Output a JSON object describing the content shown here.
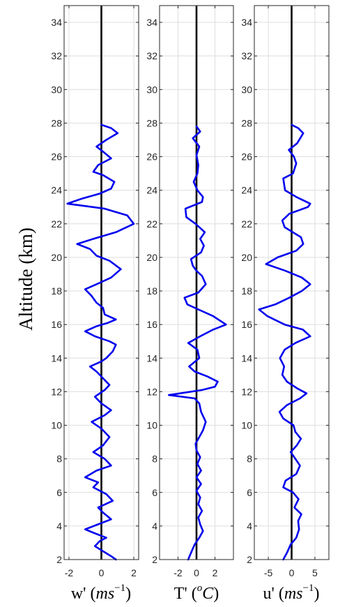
{
  "figure": {
    "ylabel": "Altitude (km)"
  },
  "chart_data": [
    {
      "type": "line",
      "xlabel": "w' (ms^-1)",
      "xlim": [
        -2.3,
        2.3
      ],
      "ylim": [
        2,
        35
      ],
      "xticks": [
        -2,
        0,
        2
      ],
      "xtick_labels": [
        "-2",
        "0",
        "2"
      ],
      "yticks": [
        2,
        4,
        6,
        8,
        10,
        12,
        14,
        16,
        18,
        20,
        22,
        24,
        26,
        28,
        30,
        32,
        34
      ],
      "ytick_labels": [
        "2",
        "4",
        "6",
        "8",
        "10",
        "12",
        "14",
        "16",
        "18",
        "20",
        "22",
        "24",
        "26",
        "28",
        "30",
        "32",
        "34"
      ],
      "grid": true,
      "series": [
        {
          "color": "#0000ee",
          "points": [
            [
              0.9,
              2.0
            ],
            [
              0.6,
              2.2
            ],
            [
              0.1,
              2.5
            ],
            [
              -0.4,
              2.8
            ],
            [
              -0.1,
              3.1
            ],
            [
              0.3,
              3.3
            ],
            [
              -0.5,
              3.6
            ],
            [
              -1.0,
              3.8
            ],
            [
              -0.2,
              4.1
            ],
            [
              0.6,
              4.4
            ],
            [
              0.1,
              4.8
            ],
            [
              -0.2,
              5.1
            ],
            [
              0.7,
              5.5
            ],
            [
              0.3,
              5.9
            ],
            [
              -0.5,
              6.3
            ],
            [
              -0.2,
              6.6
            ],
            [
              -1.0,
              6.9
            ],
            [
              -0.3,
              7.3
            ],
            [
              0.6,
              7.6
            ],
            [
              0.2,
              8.0
            ],
            [
              -0.5,
              8.4
            ],
            [
              0.1,
              8.8
            ],
            [
              0.5,
              9.3
            ],
            [
              0.0,
              9.8
            ],
            [
              -0.6,
              10.2
            ],
            [
              0.2,
              10.6
            ],
            [
              0.6,
              10.9
            ],
            [
              0.0,
              11.3
            ],
            [
              -0.4,
              11.7
            ],
            [
              0.2,
              12.1
            ],
            [
              0.5,
              12.4
            ],
            [
              0.1,
              12.8
            ],
            [
              -0.3,
              13.2
            ],
            [
              -0.7,
              13.5
            ],
            [
              0.0,
              13.8
            ],
            [
              0.3,
              14.0
            ],
            [
              0.7,
              14.4
            ],
            [
              0.9,
              14.8
            ],
            [
              0.5,
              15.0
            ],
            [
              -0.4,
              15.3
            ],
            [
              -1.0,
              15.6
            ],
            [
              -0.3,
              15.9
            ],
            [
              0.4,
              16.1
            ],
            [
              0.9,
              16.3
            ],
            [
              0.2,
              16.6
            ],
            [
              0.1,
              17.0
            ],
            [
              -0.3,
              17.3
            ],
            [
              -0.6,
              17.7
            ],
            [
              -1.0,
              18.1
            ],
            [
              -0.3,
              18.4
            ],
            [
              0.6,
              18.8
            ],
            [
              1.2,
              19.3
            ],
            [
              0.5,
              19.8
            ],
            [
              -0.3,
              20.1
            ],
            [
              -0.7,
              20.5
            ],
            [
              -1.5,
              20.8
            ],
            [
              -0.5,
              21.1
            ],
            [
              0.9,
              21.5
            ],
            [
              2.0,
              22.0
            ],
            [
              1.6,
              22.5
            ],
            [
              0.2,
              22.9
            ],
            [
              -2.1,
              23.2
            ],
            [
              -1.2,
              23.5
            ],
            [
              -0.1,
              23.8
            ],
            [
              0.6,
              24.1
            ],
            [
              0.8,
              24.5
            ],
            [
              0.1,
              24.9
            ],
            [
              -0.5,
              25.1
            ],
            [
              -0.2,
              25.5
            ],
            [
              0.6,
              25.9
            ],
            [
              0.1,
              26.3
            ],
            [
              -0.3,
              26.6
            ],
            [
              0.3,
              27.0
            ],
            [
              1.0,
              27.4
            ],
            [
              0.6,
              27.7
            ],
            [
              0.0,
              27.9
            ]
          ]
        }
      ]
    },
    {
      "type": "line",
      "xlabel": "T' (oC)",
      "xlim": [
        -4.0,
        4.0
      ],
      "ylim": [
        2,
        35
      ],
      "xticks": [
        -2,
        0,
        2
      ],
      "xtick_labels": [
        "-2",
        "0",
        "2"
      ],
      "yticks": [
        2,
        4,
        6,
        8,
        10,
        12,
        14,
        16,
        18,
        20,
        22,
        24,
        26,
        28,
        30,
        32,
        34
      ],
      "ytick_labels": [
        "2",
        "4",
        "6",
        "8",
        "10",
        "12",
        "14",
        "16",
        "18",
        "20",
        "22",
        "24",
        "26",
        "28",
        "30",
        "32",
        "34"
      ],
      "grid": true,
      "series": [
        {
          "color": "#0000ee",
          "points": [
            [
              -0.9,
              2.0
            ],
            [
              -0.6,
              2.4
            ],
            [
              -0.2,
              2.9
            ],
            [
              0.3,
              3.3
            ],
            [
              0.7,
              3.7
            ],
            [
              0.4,
              4.1
            ],
            [
              0.2,
              4.5
            ],
            [
              0.6,
              4.9
            ],
            [
              0.2,
              5.3
            ],
            [
              0.4,
              5.7
            ],
            [
              0.0,
              6.1
            ],
            [
              0.5,
              6.5
            ],
            [
              0.0,
              6.9
            ],
            [
              0.5,
              7.3
            ],
            [
              0.1,
              7.7
            ],
            [
              0.4,
              8.1
            ],
            [
              0.0,
              8.5
            ],
            [
              -0.1,
              8.9
            ],
            [
              0.3,
              9.3
            ],
            [
              0.7,
              9.7
            ],
            [
              1.0,
              10.2
            ],
            [
              0.5,
              10.8
            ],
            [
              0.3,
              11.3
            ],
            [
              -0.2,
              11.6
            ],
            [
              -3.0,
              11.8
            ],
            [
              0.6,
              12.1
            ],
            [
              2.0,
              12.3
            ],
            [
              2.3,
              12.6
            ],
            [
              1.2,
              12.9
            ],
            [
              -0.2,
              13.2
            ],
            [
              -0.8,
              13.5
            ],
            [
              0.3,
              14.0
            ],
            [
              0.1,
              14.5
            ],
            [
              -0.9,
              14.9
            ],
            [
              0.4,
              15.3
            ],
            [
              1.8,
              15.7
            ],
            [
              3.2,
              16.0
            ],
            [
              1.8,
              16.5
            ],
            [
              0.2,
              16.9
            ],
            [
              -1.0,
              17.2
            ],
            [
              -1.3,
              17.6
            ],
            [
              0.2,
              17.9
            ],
            [
              1.0,
              18.4
            ],
            [
              0.6,
              18.9
            ],
            [
              0.0,
              19.2
            ],
            [
              -0.4,
              19.5
            ],
            [
              -0.6,
              19.9
            ],
            [
              0.5,
              20.3
            ],
            [
              0.8,
              20.7
            ],
            [
              0.4,
              21.1
            ],
            [
              0.9,
              21.5
            ],
            [
              -0.1,
              22.0
            ],
            [
              -1.1,
              22.4
            ],
            [
              -1.2,
              22.9
            ],
            [
              0.6,
              23.3
            ],
            [
              0.7,
              23.6
            ],
            [
              0.1,
              24.0
            ],
            [
              -0.3,
              24.5
            ],
            [
              0.1,
              25.0
            ],
            [
              0.2,
              25.5
            ],
            [
              0.0,
              26.1
            ],
            [
              0.3,
              26.6
            ],
            [
              -0.4,
              27.1
            ],
            [
              0.4,
              27.5
            ],
            [
              0.0,
              27.8
            ]
          ]
        }
      ]
    },
    {
      "type": "line",
      "xlabel": "u' (ms^-1)",
      "xlim": [
        -8.0,
        8.0
      ],
      "ylim": [
        2,
        35
      ],
      "xticks": [
        -5,
        0,
        5
      ],
      "xtick_labels": [
        "-5",
        "0",
        "5"
      ],
      "yticks": [
        2,
        4,
        6,
        8,
        10,
        12,
        14,
        16,
        18,
        20,
        22,
        24,
        26,
        28,
        30,
        32,
        34
      ],
      "ytick_labels": [
        "2",
        "4",
        "6",
        "8",
        "10",
        "12",
        "14",
        "16",
        "18",
        "20",
        "22",
        "24",
        "26",
        "28",
        "30",
        "32",
        "34"
      ],
      "grid": true,
      "series": [
        {
          "color": "#0000ee",
          "points": [
            [
              -1.8,
              2.0
            ],
            [
              -1.0,
              2.4
            ],
            [
              -0.2,
              2.9
            ],
            [
              1.0,
              3.3
            ],
            [
              1.6,
              3.8
            ],
            [
              1.4,
              4.3
            ],
            [
              2.1,
              4.7
            ],
            [
              0.6,
              5.1
            ],
            [
              1.5,
              5.6
            ],
            [
              0.3,
              6.0
            ],
            [
              -1.8,
              6.3
            ],
            [
              -1.3,
              6.7
            ],
            [
              1.0,
              7.1
            ],
            [
              1.8,
              7.6
            ],
            [
              0.8,
              8.0
            ],
            [
              -0.2,
              8.4
            ],
            [
              1.1,
              8.8
            ],
            [
              2.0,
              9.2
            ],
            [
              0.8,
              9.6
            ],
            [
              0.4,
              10.0
            ],
            [
              -1.8,
              10.4
            ],
            [
              -2.6,
              10.8
            ],
            [
              -1.0,
              11.2
            ],
            [
              1.8,
              11.6
            ],
            [
              3.2,
              11.9
            ],
            [
              1.2,
              12.2
            ],
            [
              -1.0,
              12.6
            ],
            [
              -2.0,
              13.0
            ],
            [
              -1.6,
              13.5
            ],
            [
              -2.5,
              14.0
            ],
            [
              -1.5,
              14.5
            ],
            [
              0.8,
              14.9
            ],
            [
              4.0,
              15.3
            ],
            [
              2.4,
              15.7
            ],
            [
              -1.5,
              16.0
            ],
            [
              -5.2,
              16.5
            ],
            [
              -7.0,
              16.9
            ],
            [
              -3.5,
              17.2
            ],
            [
              -0.5,
              17.6
            ],
            [
              2.2,
              18.0
            ],
            [
              4.0,
              18.4
            ],
            [
              2.2,
              18.8
            ],
            [
              -1.3,
              19.2
            ],
            [
              -5.5,
              19.6
            ],
            [
              -3.0,
              20.0
            ],
            [
              1.0,
              20.4
            ],
            [
              2.5,
              20.8
            ],
            [
              2.0,
              21.2
            ],
            [
              -1.5,
              21.8
            ],
            [
              -2.0,
              22.2
            ],
            [
              -0.5,
              22.6
            ],
            [
              3.5,
              23.0
            ],
            [
              4.0,
              23.2
            ],
            [
              1.0,
              23.6
            ],
            [
              -1.4,
              24.0
            ],
            [
              -1.8,
              24.7
            ],
            [
              0.3,
              25.0
            ],
            [
              1.0,
              25.6
            ],
            [
              0.5,
              26.0
            ],
            [
              -0.6,
              26.4
            ],
            [
              1.2,
              26.8
            ],
            [
              2.5,
              27.4
            ],
            [
              1.4,
              27.7
            ],
            [
              0.0,
              27.9
            ]
          ]
        }
      ]
    }
  ]
}
